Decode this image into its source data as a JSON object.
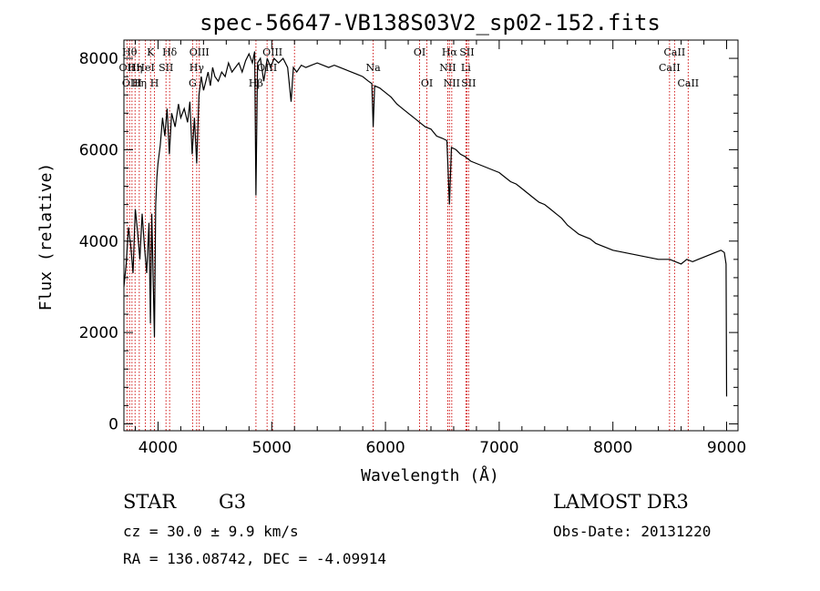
{
  "chart_data": {
    "type": "line",
    "title": "spec-56647-VB138S03V2_sp02-152.fits",
    "xlabel": "Wavelength (Å)",
    "ylabel": "Flux (relative)",
    "xlim": [
      3700,
      9100
    ],
    "ylim": [
      -150,
      8400
    ],
    "xticks": [
      4000,
      5000,
      6000,
      7000,
      8000,
      9000
    ],
    "yticks": [
      0,
      2000,
      4000,
      6000,
      8000
    ],
    "series": [
      {
        "name": "spectrum",
        "points": [
          [
            3700,
            3000
          ],
          [
            3720,
            3500
          ],
          [
            3740,
            4300
          ],
          [
            3760,
            3900
          ],
          [
            3780,
            3300
          ],
          [
            3800,
            4700
          ],
          [
            3820,
            4200
          ],
          [
            3840,
            3600
          ],
          [
            3860,
            4600
          ],
          [
            3880,
            3900
          ],
          [
            3900,
            3300
          ],
          [
            3920,
            4400
          ],
          [
            3933,
            2200
          ],
          [
            3945,
            4600
          ],
          [
            3968,
            1900
          ],
          [
            3980,
            4800
          ],
          [
            3990,
            5400
          ],
          [
            4000,
            5700
          ],
          [
            4020,
            6100
          ],
          [
            4040,
            6700
          ],
          [
            4060,
            6300
          ],
          [
            4080,
            6900
          ],
          [
            4100,
            5900
          ],
          [
            4120,
            6800
          ],
          [
            4150,
            6500
          ],
          [
            4180,
            7000
          ],
          [
            4200,
            6700
          ],
          [
            4230,
            6900
          ],
          [
            4260,
            6600
          ],
          [
            4280,
            7050
          ],
          [
            4300,
            5900
          ],
          [
            4320,
            6700
          ],
          [
            4340,
            5700
          ],
          [
            4360,
            7200
          ],
          [
            4380,
            7600
          ],
          [
            4400,
            7300
          ],
          [
            4420,
            7500
          ],
          [
            4440,
            7700
          ],
          [
            4460,
            7400
          ],
          [
            4480,
            7800
          ],
          [
            4500,
            7600
          ],
          [
            4530,
            7500
          ],
          [
            4560,
            7700
          ],
          [
            4590,
            7600
          ],
          [
            4620,
            7900
          ],
          [
            4650,
            7700
          ],
          [
            4680,
            7800
          ],
          [
            4710,
            7900
          ],
          [
            4740,
            7700
          ],
          [
            4770,
            7950
          ],
          [
            4800,
            8100
          ],
          [
            4830,
            7900
          ],
          [
            4850,
            8150
          ],
          [
            4861,
            5000
          ],
          [
            4875,
            7900
          ],
          [
            4900,
            8000
          ],
          [
            4930,
            7500
          ],
          [
            4960,
            8000
          ],
          [
            4990,
            7800
          ],
          [
            5020,
            8000
          ],
          [
            5060,
            7900
          ],
          [
            5100,
            8000
          ],
          [
            5140,
            7800
          ],
          [
            5170,
            7050
          ],
          [
            5190,
            7800
          ],
          [
            5220,
            7700
          ],
          [
            5260,
            7850
          ],
          [
            5300,
            7800
          ],
          [
            5350,
            7850
          ],
          [
            5400,
            7900
          ],
          [
            5450,
            7850
          ],
          [
            5500,
            7800
          ],
          [
            5550,
            7850
          ],
          [
            5600,
            7800
          ],
          [
            5650,
            7750
          ],
          [
            5700,
            7700
          ],
          [
            5750,
            7650
          ],
          [
            5800,
            7600
          ],
          [
            5850,
            7500
          ],
          [
            5880,
            7450
          ],
          [
            5892,
            6500
          ],
          [
            5905,
            7400
          ],
          [
            5950,
            7350
          ],
          [
            6000,
            7250
          ],
          [
            6050,
            7150
          ],
          [
            6100,
            7000
          ],
          [
            6150,
            6900
          ],
          [
            6200,
            6800
          ],
          [
            6250,
            6700
          ],
          [
            6300,
            6600
          ],
          [
            6350,
            6500
          ],
          [
            6400,
            6450
          ],
          [
            6450,
            6300
          ],
          [
            6500,
            6250
          ],
          [
            6540,
            6200
          ],
          [
            6563,
            4800
          ],
          [
            6580,
            6050
          ],
          [
            6620,
            6000
          ],
          [
            6660,
            5900
          ],
          [
            6700,
            5850
          ],
          [
            6750,
            5750
          ],
          [
            6800,
            5700
          ],
          [
            6850,
            5650
          ],
          [
            6900,
            5600
          ],
          [
            6950,
            5550
          ],
          [
            7000,
            5500
          ],
          [
            7050,
            5400
          ],
          [
            7100,
            5300
          ],
          [
            7150,
            5250
          ],
          [
            7200,
            5150
          ],
          [
            7250,
            5050
          ],
          [
            7300,
            4950
          ],
          [
            7350,
            4850
          ],
          [
            7400,
            4800
          ],
          [
            7450,
            4700
          ],
          [
            7500,
            4600
          ],
          [
            7550,
            4500
          ],
          [
            7600,
            4350
          ],
          [
            7650,
            4250
          ],
          [
            7700,
            4150
          ],
          [
            7750,
            4100
          ],
          [
            7800,
            4050
          ],
          [
            7850,
            3950
          ],
          [
            7900,
            3900
          ],
          [
            7950,
            3850
          ],
          [
            8000,
            3800
          ],
          [
            8100,
            3750
          ],
          [
            8200,
            3700
          ],
          [
            8300,
            3650
          ],
          [
            8400,
            3600
          ],
          [
            8500,
            3600
          ],
          [
            8550,
            3550
          ],
          [
            8600,
            3500
          ],
          [
            8650,
            3600
          ],
          [
            8700,
            3550
          ],
          [
            8750,
            3600
          ],
          [
            8800,
            3650
          ],
          [
            8850,
            3700
          ],
          [
            8900,
            3750
          ],
          [
            8950,
            3800
          ],
          [
            8980,
            3750
          ],
          [
            8995,
            3500
          ],
          [
            9000,
            600
          ]
        ]
      }
    ],
    "lines": [
      {
        "w": 3727,
        "label": "OII",
        "row": 1
      },
      {
        "w": 3750,
        "label": "Hθ",
        "row": 0
      },
      {
        "w": 3771,
        "label": "OIII",
        "row": 2
      },
      {
        "w": 3798,
        "label": "Hη",
        "row": 1
      },
      {
        "w": 3835,
        "label": "Hη",
        "row": 2
      },
      {
        "w": 3889,
        "label": "HeI",
        "row": 1
      },
      {
        "w": 3934,
        "label": "K",
        "row": 0
      },
      {
        "w": 3969,
        "label": "H",
        "row": 2
      },
      {
        "w": 4070,
        "label": "SII",
        "row": 1
      },
      {
        "w": 4102,
        "label": "Hδ",
        "row": 0
      },
      {
        "w": 4304,
        "label": "G",
        "row": 2
      },
      {
        "w": 4340,
        "label": "Hγ",
        "row": 1
      },
      {
        "w": 4363,
        "label": "OIII",
        "row": 0
      },
      {
        "w": 4861,
        "label": "Hβ",
        "row": 2
      },
      {
        "w": 4959,
        "label": "OIII",
        "row": 1
      },
      {
        "w": 5007,
        "label": "OIII",
        "row": 0
      },
      {
        "w": 5200,
        "label": "",
        "row": 0
      },
      {
        "w": 5892,
        "label": "Na",
        "row": 1
      },
      {
        "w": 6300,
        "label": "OI",
        "row": 0
      },
      {
        "w": 6364,
        "label": "OI",
        "row": 2
      },
      {
        "w": 6548,
        "label": "NII",
        "row": 1
      },
      {
        "w": 6563,
        "label": "Hα",
        "row": 0
      },
      {
        "w": 6583,
        "label": "NII",
        "row": 2
      },
      {
        "w": 6707,
        "label": "Li",
        "row": 1
      },
      {
        "w": 6716,
        "label": "SII",
        "row": 0
      },
      {
        "w": 6731,
        "label": "SII",
        "row": 2
      },
      {
        "w": 8498,
        "label": "CaII",
        "row": 1
      },
      {
        "w": 8542,
        "label": "CaII",
        "row": 0
      },
      {
        "w": 8662,
        "label": "CaII",
        "row": 2
      }
    ]
  },
  "info": {
    "object_class": "STAR",
    "subclass": "G3",
    "survey": "LAMOST DR3",
    "velocity": "cz = 30.0 ± 9.9 km/s",
    "obs_date": "Obs-Date: 20131220",
    "coords": "RA = 136.08742, DEC =  -4.09914"
  },
  "colors": {
    "spectrum": "#000000",
    "line_marker": "#cc0000",
    "axis": "#000000"
  }
}
